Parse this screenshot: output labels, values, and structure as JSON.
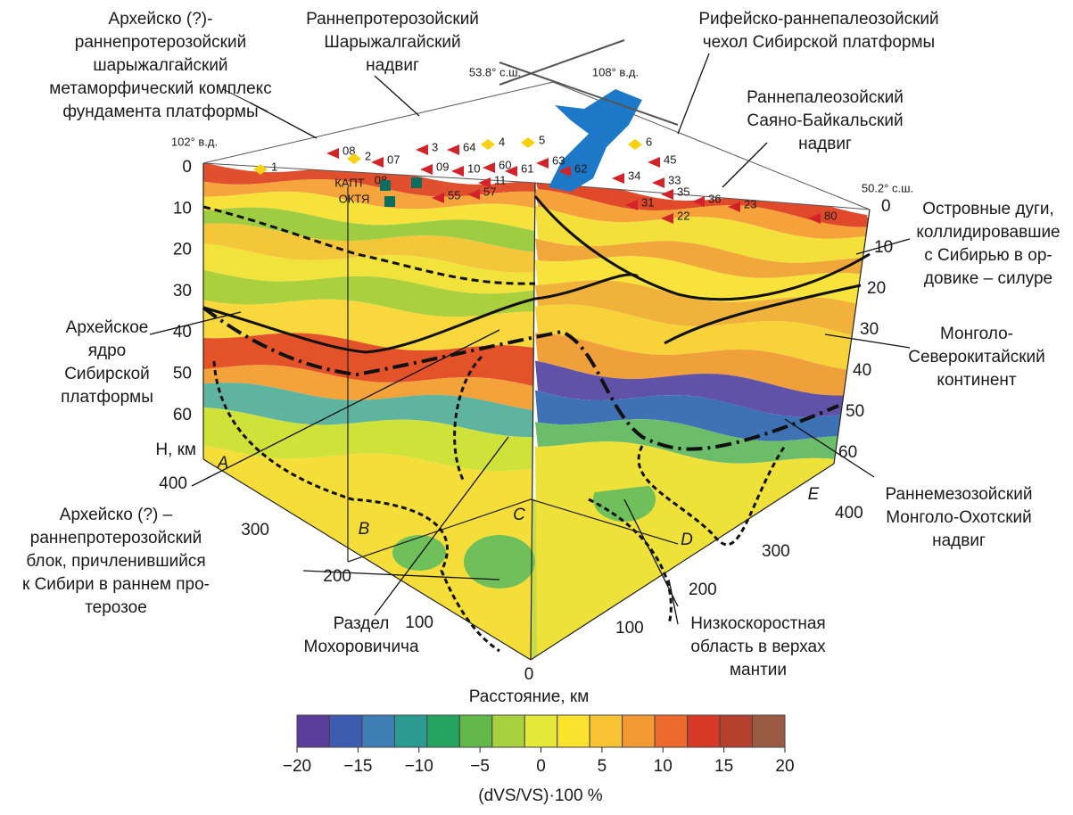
{
  "annotations": [
    {
      "lines": [
        "Архейско (?)-",
        "раннепротерозойский",
        "шарыжалгайский",
        "метаморфический комплекс",
        "фундамента платформы"
      ]
    },
    {
      "lines": [
        "Раннепротерозойский",
        "Шарыжалгайский",
        "надвиг"
      ]
    },
    {
      "lines": [
        "Рифейско-раннепалеозойский",
        "чехол Сибирской платформы"
      ]
    },
    {
      "lines": [
        "Раннепалеозойский",
        "Саяно-Байкальский",
        "надвиг"
      ]
    },
    {
      "lines": [
        "Островные дуги,",
        "коллидировавшие",
        "с Сибирью в  ор-",
        "довике – силуре"
      ]
    },
    {
      "lines": [
        "Монголо-",
        "Северокитайский",
        "континент"
      ]
    },
    {
      "lines": [
        "Раннемезозойский",
        "Монголо-Охотский",
        "надвиг"
      ]
    },
    {
      "lines": [
        "Низкоскоростная",
        "область в верхах",
        "мантии"
      ]
    },
    {
      "lines": [
        "Раздел",
        "Мохоровичича"
      ]
    },
    {
      "lines": [
        "Архейско (?) –",
        "раннепротерозойский",
        "блок, причленившийся",
        "к Сибири в раннем про-",
        "терозое"
      ]
    },
    {
      "lines": [
        "Архейское",
        "ядро",
        "Сибирской",
        "платформы"
      ]
    }
  ],
  "coordinates": [
    "102° в.д.",
    "53.8° с.ш.",
    "108° в.д.",
    "50.2° с.ш."
  ],
  "depth_axis": {
    "label": "H, км",
    "left_ticks": [
      0,
      10,
      20,
      30,
      40,
      50,
      60
    ],
    "right_ticks": [
      0,
      10,
      20,
      30,
      40,
      50,
      60
    ]
  },
  "distance_axis": {
    "label": "Расстояние, км",
    "left_ticks": [
      400,
      300,
      200,
      100
    ],
    "origin": 0,
    "right_ticks": [
      100,
      200,
      300,
      400
    ]
  },
  "corners": [
    "A",
    "B",
    "C",
    "D",
    "E"
  ],
  "stations": [
    "1",
    "08",
    "2",
    "07",
    "3",
    "64",
    "4",
    "5",
    "6",
    "08",
    "09",
    "10",
    "60",
    "61",
    "63",
    "62",
    "45",
    "55",
    "57",
    "11",
    "33",
    "34",
    "35",
    "36",
    "31",
    "22",
    "23",
    "80",
    "КАПТ",
    "ОКТЯ"
  ],
  "colorbar": {
    "label": "(dVS/VS)·100 %",
    "ticks": [
      {
        "value": -20,
        "label": "−20"
      },
      {
        "value": -15,
        "label": "−15"
      },
      {
        "value": -10,
        "label": "−10"
      },
      {
        "value": -5,
        "label": "−5"
      },
      0,
      5,
      10,
      15,
      20
    ],
    "colors": [
      "#5b3d9c",
      "#3d5cb0",
      "#3f7fb4",
      "#2b9a91",
      "#25a35f",
      "#62b94a",
      "#a9d03d",
      "#e4e838",
      "#fbe22c",
      "#f8c234",
      "#f39a33",
      "#ec6a2c",
      "#d63a26",
      "#b5402e",
      "#9a5a44"
    ]
  }
}
